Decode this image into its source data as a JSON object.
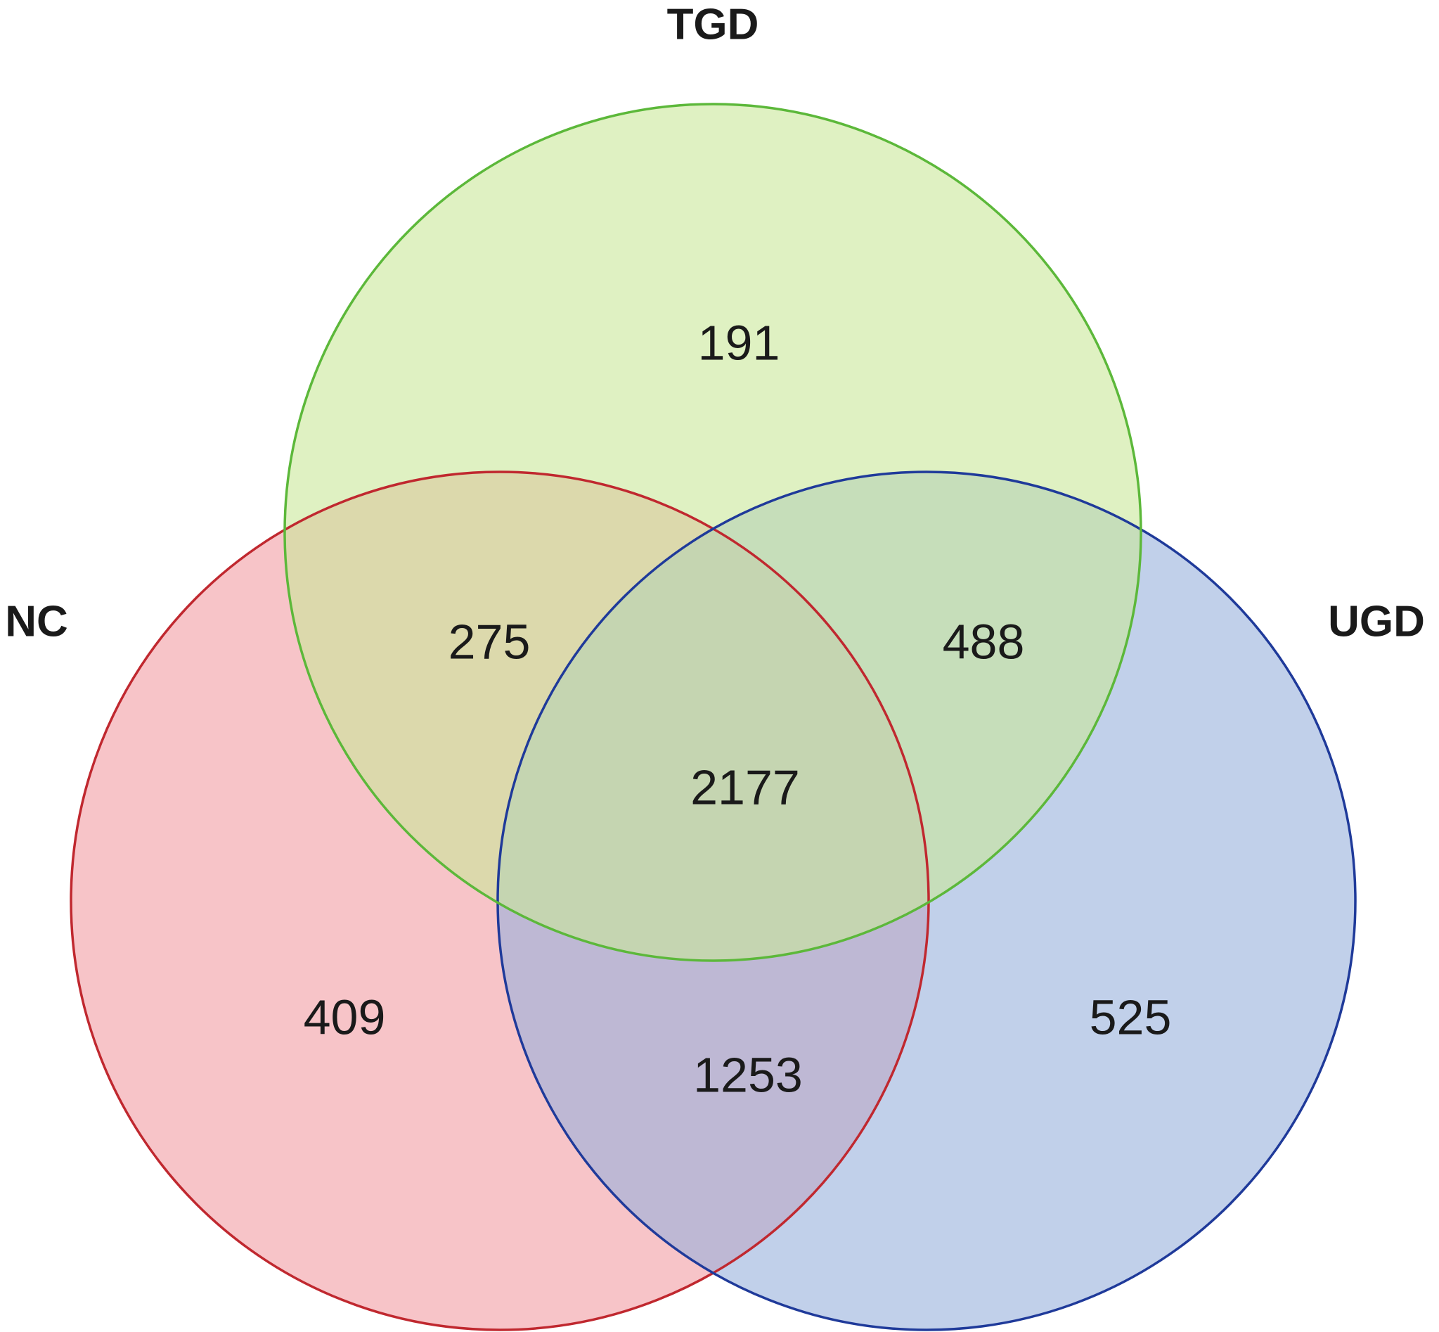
{
  "chart_data": {
    "type": "venn",
    "sets": [
      {
        "name": "TGD",
        "color": "#c9e89a",
        "edgecolor": "#5cb83a"
      },
      {
        "name": "NC",
        "color": "#f29ca3",
        "edgecolor": "#c0282f"
      },
      {
        "name": "UGD",
        "color": "#97b0dc",
        "edgecolor": "#1f3a9a"
      }
    ],
    "values": [
      191,
      275,
      488,
      2177,
      409,
      1253,
      525
    ]
  }
}
